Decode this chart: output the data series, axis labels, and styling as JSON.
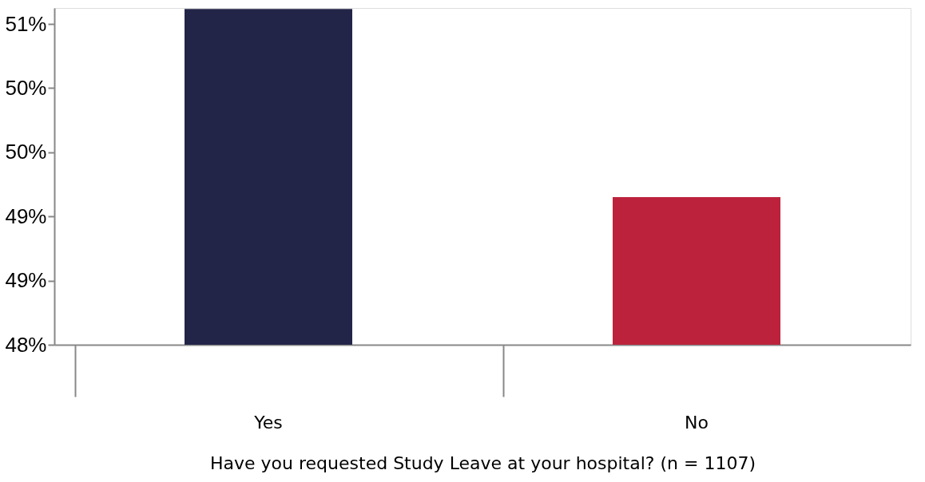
{
  "chart_data": {
    "type": "bar",
    "xlabel": "Have you requested  Study Leave at your hospital? (n = 1107)",
    "categories": [
      "Yes",
      "No"
    ],
    "values": [
      51.14,
      49.38
    ],
    "colors": [
      "#222448",
      "#bc223c"
    ],
    "ylim": [
      48,
      51.15
    ],
    "yticks": [
      {
        "value": 48,
        "label": "48%"
      },
      {
        "value": 48.6,
        "label": "49%"
      },
      {
        "value": 49.2,
        "label": "49%"
      },
      {
        "value": 49.8,
        "label": "50%"
      },
      {
        "value": 50.4,
        "label": "50%"
      },
      {
        "value": 51,
        "label": "51%"
      }
    ],
    "grid": false
  }
}
